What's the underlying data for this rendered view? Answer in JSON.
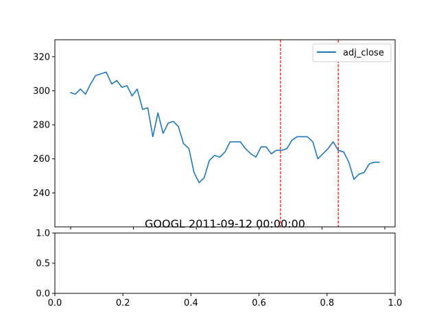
{
  "chart_data": [
    {
      "type": "line",
      "title": "",
      "xlabel": "",
      "ylabel": "",
      "ylim": [
        220,
        330
      ],
      "xlim": [
        0.0,
        1.0
      ],
      "yticks": [
        240,
        260,
        280,
        300,
        320
      ],
      "ytick_labels": [
        "240",
        "260",
        "280",
        "300",
        "320"
      ],
      "grid": false,
      "legend": {
        "placement": "top-right",
        "entries": [
          "adj_close"
        ]
      },
      "series": [
        {
          "name": "adj_close",
          "color": "#1f77b4",
          "x": [
            0.045,
            0.06,
            0.075,
            0.09,
            0.105,
            0.12,
            0.136,
            0.151,
            0.167,
            0.182,
            0.197,
            0.212,
            0.227,
            0.242,
            0.258,
            0.273,
            0.288,
            0.303,
            0.318,
            0.333,
            0.348,
            0.363,
            0.378,
            0.394,
            0.409,
            0.424,
            0.439,
            0.454,
            0.469,
            0.485,
            0.5,
            0.515,
            0.53,
            0.545,
            0.56,
            0.576,
            0.591,
            0.606,
            0.621,
            0.636,
            0.651,
            0.667,
            0.682,
            0.697,
            0.712,
            0.727,
            0.742,
            0.758,
            0.773,
            0.788,
            0.803,
            0.818,
            0.833,
            0.849,
            0.864,
            0.879,
            0.894,
            0.909,
            0.924,
            0.939,
            0.955
          ],
          "values": [
            299,
            298,
            301,
            298,
            304,
            309,
            310,
            311,
            304,
            306,
            302,
            303,
            297,
            301,
            289,
            290,
            273,
            287,
            275,
            281,
            282,
            279,
            269,
            266,
            252,
            246,
            249,
            259,
            262,
            261,
            264,
            270,
            270,
            270,
            266,
            263,
            261,
            267,
            267,
            263,
            265,
            265,
            266,
            271,
            273,
            273,
            273,
            270,
            260,
            263,
            266,
            270,
            265,
            264,
            258,
            248,
            251,
            252,
            257,
            258,
            258
          ]
        }
      ],
      "vlines": [
        {
          "x": 0.663,
          "color": "#ff0000",
          "style": "dashed"
        },
        {
          "x": 0.833,
          "color": "#ff0000",
          "style": "dashed"
        }
      ]
    },
    {
      "type": "line",
      "title": "GOOGL 2011-09-12 00:00:00",
      "xlabel": "",
      "ylabel": "",
      "xlim": [
        0.0,
        1.0
      ],
      "ylim": [
        0.0,
        1.0
      ],
      "xticks": [
        0.0,
        0.2,
        0.4,
        0.6,
        0.8,
        1.0
      ],
      "xtick_labels": [
        "0.0",
        "0.2",
        "0.4",
        "0.6",
        "0.8",
        "1.0"
      ],
      "yticks": [
        0.0,
        0.5,
        1.0
      ],
      "ytick_labels": [
        "0.0",
        "0.5",
        "1.0"
      ],
      "grid": false,
      "series": []
    }
  ]
}
